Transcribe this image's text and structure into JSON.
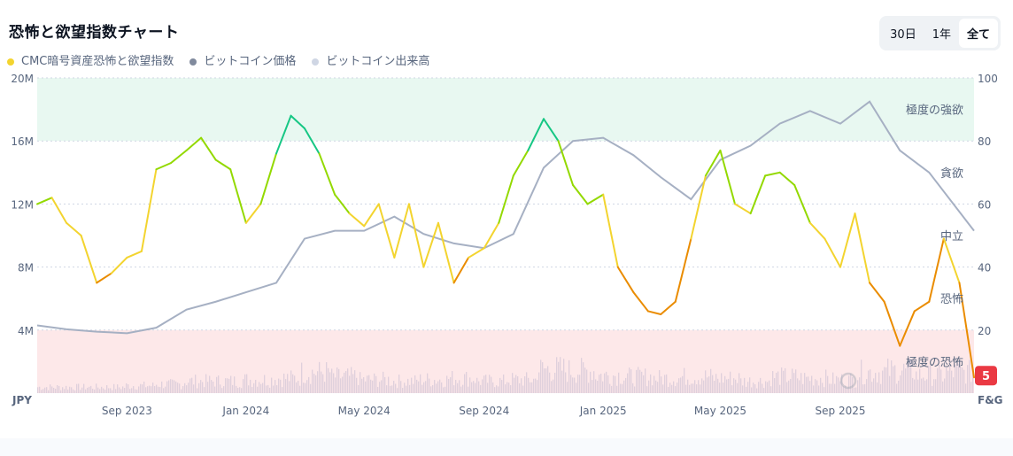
{
  "header": {
    "title": "恐怖と欲望指数チャート"
  },
  "range_buttons": [
    {
      "label": "30日",
      "selected": false
    },
    {
      "label": "1年",
      "selected": false
    },
    {
      "label": "全て",
      "selected": true
    }
  ],
  "chart_data": {
    "type": "line",
    "title": "恐怖と欲望指数チャート",
    "legend": [
      {
        "name": "CMC暗号資産恐怖と欲望指数",
        "color": "#f3d42f"
      },
      {
        "name": "ビットコイン価格",
        "color": "#808a9d"
      },
      {
        "name": "ビットコイン出来高",
        "color": "#cfd6e4"
      }
    ],
    "left_axis": {
      "unit": "JPY",
      "ticks": [
        "20M",
        "16M",
        "12M",
        "8M",
        "4M"
      ],
      "range": [
        0,
        20000000
      ]
    },
    "right_axis": {
      "unit": "F&G",
      "ticks": [
        "100",
        "80",
        "60",
        "40",
        "20"
      ],
      "range": [
        0,
        100
      ]
    },
    "x_ticks": [
      "Sep 2023",
      "Jan 2024",
      "May 2024",
      "Sep 2024",
      "Jan 2025",
      "May 2025",
      "Sep 2025"
    ],
    "x_range": [
      "2023-06-01",
      "2026-01-16"
    ],
    "zones": [
      {
        "label": "極度の強欲",
        "from": 80,
        "to": 100,
        "color": "#e8f8f1"
      },
      {
        "label": "極度の恐怖",
        "from": 0,
        "to": 20,
        "color": "#fde8e9"
      }
    ],
    "zone_labels": [
      {
        "label": "極度の強欲",
        "value": 90
      },
      {
        "label": "貪欲",
        "value": 70
      },
      {
        "label": "中立",
        "value": 50
      },
      {
        "label": "恐怖",
        "value": 30
      },
      {
        "label": "極度の恐怖",
        "value": 10
      }
    ],
    "current_value": "5",
    "fg_colors": {
      "extreme_greed": "#16c784",
      "greed": "#93d900",
      "neutral": "#f3d42f",
      "fear": "#ea8c00",
      "extreme_fear": "#ea3943"
    },
    "fear_greed": {
      "dates": [
        "2023-06-01",
        "2023-06-16",
        "2023-07-01",
        "2023-07-16",
        "2023-08-01",
        "2023-08-16",
        "2023-09-01",
        "2023-09-16",
        "2023-10-01",
        "2023-10-16",
        "2023-11-01",
        "2023-11-16",
        "2023-12-01",
        "2023-12-16",
        "2024-01-01",
        "2024-01-16",
        "2024-02-01",
        "2024-02-16",
        "2024-03-01",
        "2024-03-16",
        "2024-04-01",
        "2024-04-16",
        "2024-05-01",
        "2024-05-16",
        "2024-06-01",
        "2024-06-16",
        "2024-07-01",
        "2024-07-16",
        "2024-08-01",
        "2024-08-16",
        "2024-09-01",
        "2024-09-16",
        "2024-10-01",
        "2024-10-16",
        "2024-11-01",
        "2024-11-16",
        "2024-12-01",
        "2024-12-16",
        "2025-01-01",
        "2025-01-16",
        "2025-02-01",
        "2025-02-16",
        "2025-03-01",
        "2025-03-16",
        "2025-04-01",
        "2025-04-16",
        "2025-05-01",
        "2025-05-16",
        "2025-06-01",
        "2025-06-16",
        "2025-07-01",
        "2025-07-16",
        "2025-08-01",
        "2025-08-16",
        "2025-09-01",
        "2025-09-16",
        "2025-10-01",
        "2025-10-16",
        "2025-11-01",
        "2025-11-16",
        "2025-12-01",
        "2025-12-16",
        "2026-01-01",
        "2026-01-16"
      ],
      "values": [
        60,
        62,
        54,
        50,
        35,
        38,
        43,
        45,
        71,
        73,
        77,
        81,
        74,
        71,
        54,
        60,
        76,
        88,
        84,
        76,
        63,
        57,
        53,
        60,
        43,
        60,
        40,
        54,
        35,
        43,
        46,
        54,
        69,
        77,
        87,
        80,
        66,
        60,
        63,
        40,
        32,
        26,
        25,
        29,
        49,
        69,
        77,
        60,
        57,
        69,
        70,
        66,
        54,
        49,
        40,
        57,
        35,
        29,
        15,
        26,
        29,
        49,
        35,
        5
      ]
    },
    "btc_price_jpy": {
      "dates": [
        "2023-06-01",
        "2023-07-01",
        "2023-08-01",
        "2023-09-01",
        "2023-10-01",
        "2023-11-01",
        "2023-12-01",
        "2024-01-01",
        "2024-02-01",
        "2024-03-01",
        "2024-04-01",
        "2024-05-01",
        "2024-06-01",
        "2024-07-01",
        "2024-08-01",
        "2024-09-01",
        "2024-10-01",
        "2024-11-01",
        "2024-12-01",
        "2025-01-01",
        "2025-02-01",
        "2025-03-01",
        "2025-04-01",
        "2025-05-01",
        "2025-06-01",
        "2025-07-01",
        "2025-08-01",
        "2025-09-01",
        "2025-10-01",
        "2025-11-01",
        "2025-12-01",
        "2026-01-16"
      ],
      "values": [
        4300000,
        4050000,
        3900000,
        3800000,
        4150000,
        5300000,
        5800000,
        6400000,
        7000000,
        9800000,
        10300000,
        10300000,
        11200000,
        10100000,
        9500000,
        9200000,
        10100000,
        14300000,
        16000000,
        16200000,
        15100000,
        13700000,
        12300000,
        14800000,
        15700000,
        17100000,
        17900000,
        17100000,
        18500000,
        15400000,
        14000000,
        10300000
      ]
    },
    "btc_volume_relative": [
      0.2,
      0.2,
      0.2,
      0.25,
      0.3,
      0.4,
      0.4,
      0.45,
      0.5,
      0.7,
      0.55,
      0.45,
      0.4,
      0.45,
      0.5,
      0.4,
      0.45,
      0.8,
      0.75,
      0.6,
      0.55,
      0.5,
      0.55,
      0.5,
      0.4,
      0.55,
      0.5,
      0.45,
      0.7,
      0.75,
      0.6,
      0.7
    ]
  }
}
